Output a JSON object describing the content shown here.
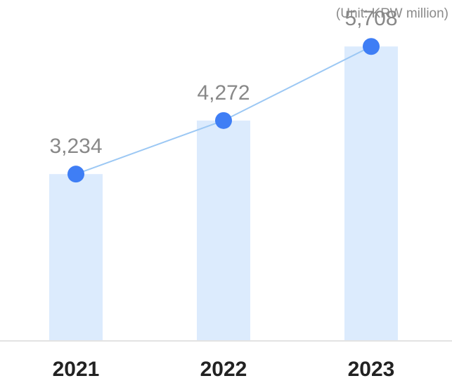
{
  "chart_data": {
    "type": "bar",
    "categories": [
      "2021",
      "2022",
      "2023"
    ],
    "values": [
      3234,
      4272,
      5708
    ],
    "value_labels": [
      "3,234",
      "4,272",
      "5,708"
    ],
    "overlay_line": true,
    "unit_note": "(Unit: KRW million)",
    "ylim": [
      0,
      6500
    ],
    "grid": false,
    "colors": {
      "bar": "#dcebfd",
      "line": "#9cc8f4",
      "marker": "#3f7ef5",
      "value_text": "#888888",
      "tick_text": "#222222",
      "baseline": "#e3e3e3"
    }
  }
}
